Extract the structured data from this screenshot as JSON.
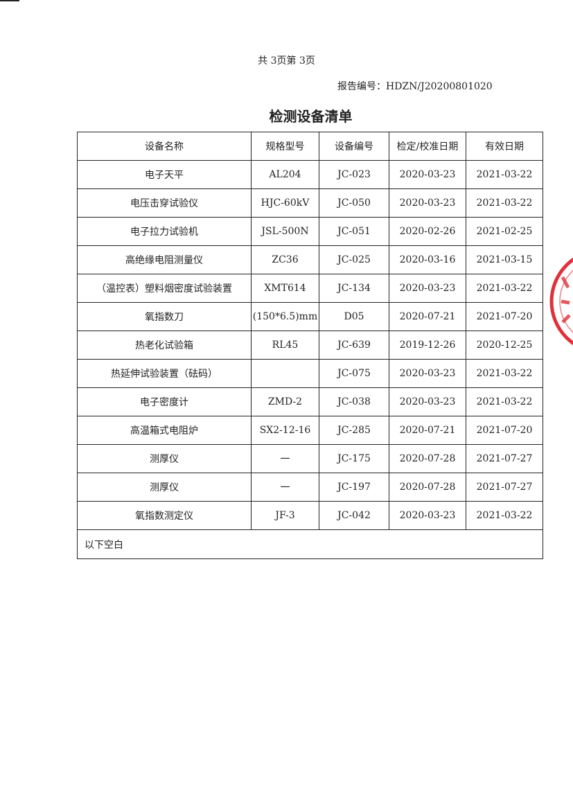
{
  "pager": "共 3页第 3页",
  "report_number": "报告编号：HDZN/J20200801020",
  "title": "检测设备清单",
  "table": {
    "headers": [
      "设备名称",
      "规格型号",
      "设备编号",
      "检定/校准日期",
      "有效日期"
    ],
    "rows": [
      [
        "电子天平",
        "AL204",
        "JC-023",
        "2020-03-23",
        "2021-03-22"
      ],
      [
        "电压击穿试验仪",
        "HJC-60kV",
        "JC-050",
        "2020-03-23",
        "2021-03-22"
      ],
      [
        "电子拉力试验机",
        "JSL-500N",
        "JC-051",
        "2020-02-26",
        "2021-02-25"
      ],
      [
        "高绝缘电阻测量仪",
        "ZC36",
        "JC-025",
        "2020-03-16",
        "2021-03-15"
      ],
      [
        "（温控表）塑料烟密度试验装置",
        "XMT614",
        "JC-134",
        "2020-03-23",
        "2021-03-22"
      ],
      [
        "氧指数刀",
        "(150*6.5)mm",
        "D05",
        "2020-07-21",
        "2021-07-20"
      ],
      [
        "热老化试验箱",
        "RL45",
        "JC-639",
        "2019-12-26",
        "2020-12-25"
      ],
      [
        "热延伸试验装置（砝码）",
        "",
        "JC-075",
        "2020-03-23",
        "2021-03-22"
      ],
      [
        "电子密度计",
        "ZMD-2",
        "JC-038",
        "2020-03-23",
        "2021-03-22"
      ],
      [
        "高温箱式电阻炉",
        "SX2-12-16",
        "JC-285",
        "2020-07-21",
        "2021-07-20"
      ],
      [
        "测厚仪",
        "一",
        "JC-175",
        "2020-07-28",
        "2021-07-27"
      ],
      [
        "测厚仪",
        "一",
        "JC-197",
        "2020-07-28",
        "2021-07-27"
      ],
      [
        "氧指数测定仪",
        "JF-3",
        "JC-042",
        "2020-03-23",
        "2021-03-22"
      ]
    ],
    "footer_note": "以下空白"
  },
  "colors": {
    "stamp": "#e0303a",
    "ink": "#222222"
  }
}
